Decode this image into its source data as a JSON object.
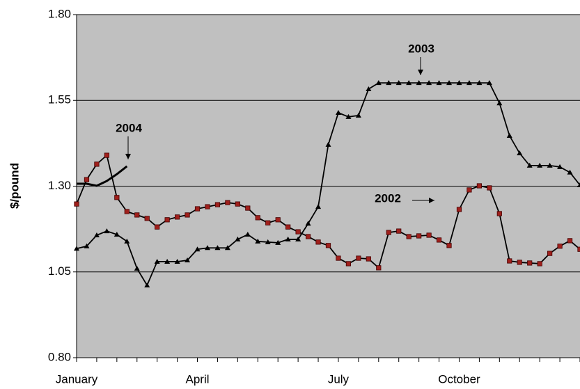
{
  "chart_data": {
    "type": "line",
    "y_label": "$/pound",
    "ylim": [
      0.8,
      1.8
    ],
    "yticks": [
      {
        "value": 0.8,
        "label": "0.80"
      },
      {
        "value": 1.05,
        "label": "1.05"
      },
      {
        "value": 1.3,
        "label": "1.30"
      },
      {
        "value": 1.55,
        "label": "1.55"
      },
      {
        "value": 1.8,
        "label": "1.80"
      }
    ],
    "grid": true,
    "categories": [
      "January",
      null,
      null,
      null,
      null,
      null,
      null,
      null,
      null,
      null,
      null,
      null,
      "April",
      null,
      null,
      null,
      null,
      null,
      null,
      null,
      null,
      null,
      null,
      null,
      null,
      null,
      "July",
      null,
      null,
      null,
      null,
      null,
      null,
      null,
      null,
      null,
      null,
      null,
      "October",
      null,
      null,
      null,
      null,
      null,
      null,
      null,
      null,
      null,
      null,
      null,
      null
    ],
    "series": [
      {
        "name": "2002",
        "color": "#a0201c",
        "marker": "square",
        "values": [
          1.248,
          1.319,
          1.364,
          1.39,
          1.267,
          1.226,
          1.216,
          1.206,
          1.181,
          1.202,
          1.21,
          1.216,
          1.234,
          1.24,
          1.246,
          1.252,
          1.248,
          1.236,
          1.208,
          1.193,
          1.202,
          1.181,
          1.167,
          1.153,
          1.137,
          1.127,
          1.09,
          1.074,
          1.09,
          1.088,
          1.062,
          1.165,
          1.169,
          1.153,
          1.155,
          1.157,
          1.143,
          1.127,
          1.232,
          1.289,
          1.301,
          1.295,
          1.22,
          1.082,
          1.078,
          1.076,
          1.074,
          1.104,
          1.125,
          1.141,
          1.116
        ]
      },
      {
        "name": "2003",
        "color": "#000000",
        "marker": "triangle",
        "values": [
          1.118,
          1.125,
          1.157,
          1.169,
          1.159,
          1.139,
          1.06,
          1.011,
          1.08,
          1.08,
          1.08,
          1.084,
          1.116,
          1.12,
          1.12,
          1.12,
          1.145,
          1.159,
          1.139,
          1.137,
          1.135,
          1.145,
          1.145,
          1.191,
          1.24,
          1.421,
          1.514,
          1.502,
          1.506,
          1.583,
          1.601,
          1.601,
          1.601,
          1.601,
          1.601,
          1.601,
          1.601,
          1.601,
          1.601,
          1.601,
          1.601,
          1.601,
          1.542,
          1.447,
          1.396,
          1.36,
          1.36,
          1.36,
          1.356,
          1.34,
          1.303
        ]
      },
      {
        "name": "2004",
        "color": "#000000",
        "marker": "none",
        "values": [
          1.307,
          1.307,
          1.301,
          1.315,
          1.335,
          1.358,
          null,
          null,
          null,
          null,
          null,
          null,
          null,
          null,
          null,
          null,
          null,
          null,
          null,
          null,
          null,
          null,
          null,
          null,
          null,
          null,
          null,
          null,
          null,
          null,
          null,
          null,
          null,
          null,
          null,
          null,
          null,
          null,
          null,
          null,
          null,
          null,
          null,
          null,
          null,
          null,
          null,
          null,
          null,
          null,
          null
        ]
      }
    ]
  }
}
